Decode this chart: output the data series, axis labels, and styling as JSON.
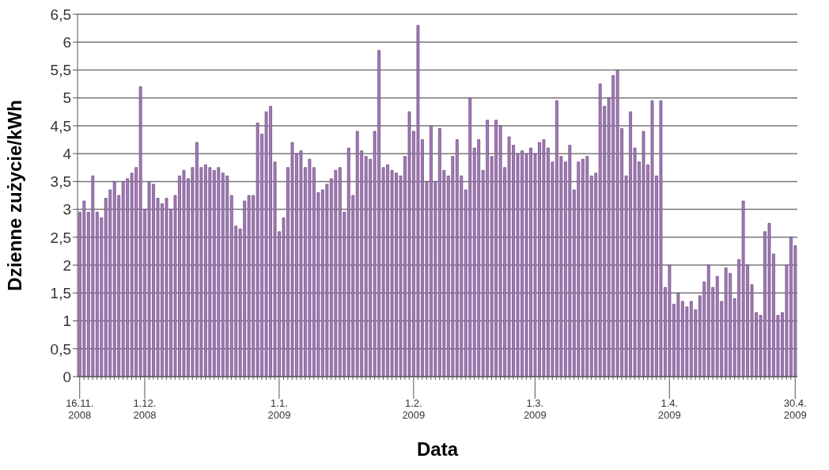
{
  "chart_data": {
    "type": "bar",
    "xlabel": "Data",
    "ylabel": "Dzienne zużycie/kWh",
    "color": "#a57bb8",
    "grid": "y",
    "ylim": [
      0,
      6.5
    ],
    "yticks": [
      0,
      {
        "value": 0.5,
        "label": "0,5"
      },
      1,
      {
        "value": 1.5,
        "label": "1,5"
      },
      2,
      {
        "value": 2.5,
        "label": "2,5"
      },
      3,
      {
        "value": 3.5,
        "label": "3,5"
      },
      4,
      {
        "value": 4.5,
        "label": "4,5"
      },
      5,
      {
        "value": 5.5,
        "label": "5,5"
      },
      6,
      {
        "value": 6.5,
        "label": "6,5"
      }
    ],
    "categories": [
      "16.11.\n2008",
      null,
      null,
      null,
      null,
      null,
      null,
      null,
      null,
      null,
      null,
      null,
      null,
      null,
      null,
      "1.12.\n2008",
      null,
      null,
      null,
      null,
      null,
      null,
      null,
      null,
      null,
      null,
      null,
      null,
      null,
      null,
      null,
      null,
      null,
      null,
      null,
      null,
      null,
      null,
      null,
      null,
      null,
      null,
      null,
      null,
      null,
      null,
      "1.1.\n2009",
      null,
      null,
      null,
      null,
      null,
      null,
      null,
      null,
      null,
      null,
      null,
      null,
      null,
      null,
      null,
      null,
      null,
      null,
      null,
      null,
      null,
      null,
      null,
      null,
      null,
      null,
      null,
      null,
      null,
      null,
      "1.2.\n2009",
      null,
      null,
      null,
      null,
      null,
      null,
      null,
      null,
      null,
      null,
      null,
      null,
      null,
      null,
      null,
      null,
      null,
      null,
      null,
      null,
      null,
      null,
      null,
      null,
      null,
      null,
      null,
      "1.3.\n2009",
      null,
      null,
      null,
      null,
      null,
      null,
      null,
      null,
      null,
      null,
      null,
      null,
      null,
      null,
      null,
      null,
      null,
      null,
      null,
      null,
      null,
      null,
      null,
      null,
      null,
      null,
      null,
      null,
      null,
      null,
      "1.4.\n2009",
      null,
      null,
      null,
      null,
      null,
      null,
      null,
      null,
      null,
      null,
      null,
      null,
      null,
      null,
      null,
      null,
      null,
      null,
      null,
      null,
      null,
      null,
      null,
      null,
      null,
      null,
      null,
      null,
      "30.4.\n2009"
    ],
    "values": [
      2.95,
      3.15,
      2.95,
      3.6,
      2.95,
      2.85,
      3.2,
      3.35,
      3.5,
      3.25,
      3.5,
      3.55,
      3.65,
      3.75,
      5.2,
      3.0,
      3.5,
      3.45,
      3.2,
      3.1,
      3.2,
      3.0,
      3.25,
      3.6,
      3.7,
      3.55,
      3.75,
      4.2,
      3.75,
      3.8,
      3.75,
      3.7,
      3.75,
      3.65,
      3.6,
      3.25,
      2.7,
      2.65,
      3.15,
      3.25,
      3.25,
      4.55,
      4.35,
      4.75,
      4.85,
      3.85,
      2.6,
      2.85,
      3.75,
      4.2,
      4.0,
      4.05,
      3.75,
      3.9,
      3.75,
      3.3,
      3.35,
      3.45,
      3.55,
      3.7,
      3.75,
      2.95,
      4.1,
      3.25,
      4.4,
      4.05,
      3.95,
      3.9,
      4.4,
      5.85,
      3.75,
      3.8,
      3.7,
      3.65,
      3.6,
      3.95,
      4.75,
      4.4,
      6.3,
      4.25,
      3.5,
      4.5,
      3.5,
      4.45,
      3.7,
      3.6,
      3.95,
      4.25,
      3.6,
      3.35,
      5.0,
      4.1,
      4.25,
      3.7,
      4.6,
      3.95,
      4.6,
      4.5,
      3.75,
      4.3,
      4.15,
      4.0,
      4.05,
      4.0,
      4.1,
      4.0,
      4.2,
      4.25,
      4.1,
      3.85,
      4.95,
      3.95,
      3.85,
      4.15,
      3.35,
      3.85,
      3.9,
      3.95,
      3.6,
      3.65,
      5.25,
      4.85,
      5.0,
      5.4,
      5.5,
      4.45,
      3.6,
      4.75,
      4.1,
      3.85,
      4.4,
      3.8,
      4.95,
      3.6,
      4.95,
      1.6,
      2.0,
      1.3,
      1.5,
      1.35,
      1.25,
      1.35,
      1.2,
      1.45,
      1.7,
      2.0,
      1.6,
      1.8,
      1.35,
      1.95,
      1.85,
      1.4,
      2.1,
      3.15,
      2.0,
      1.65,
      1.15,
      1.1,
      2.6,
      2.75,
      2.2,
      1.1,
      1.15,
      2.0,
      2.5,
      2.35
    ]
  }
}
